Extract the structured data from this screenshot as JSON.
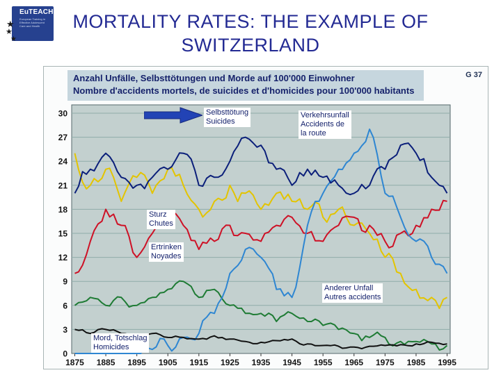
{
  "slide": {
    "title_line1": "MORTALITY RATES: THE EXAMPLE OF",
    "title_line2": "SWITZERLAND"
  },
  "logo": {
    "name": "EuTEACH",
    "subtitle": "European Training in Effective Adolescent Care and Health",
    "star": "★"
  },
  "chart_data": {
    "type": "line",
    "title_de": "Anzahl Unfälle, Selbsttötungen und Morde auf 100'000 Einwohner",
    "title_fr": "Nombre d'accidents mortels, de suicides et d'homicides pour 100'000 habitants",
    "figure_label": "G 37",
    "xlabel": "",
    "ylabel": "",
    "ylim": [
      0,
      30
    ],
    "yticks": [
      0,
      3,
      6,
      9,
      12,
      15,
      18,
      21,
      24,
      27,
      30
    ],
    "xticks": [
      1875,
      1885,
      1895,
      1905,
      1915,
      1925,
      1935,
      1945,
      1955,
      1965,
      1975,
      1985,
      1995
    ],
    "grid": "horizontal",
    "legend_position": "annotated-inline",
    "x": [
      1875,
      1880,
      1885,
      1890,
      1895,
      1900,
      1905,
      1910,
      1915,
      1920,
      1925,
      1930,
      1935,
      1940,
      1945,
      1950,
      1955,
      1960,
      1965,
      1970,
      1975,
      1980,
      1985,
      1990,
      1995
    ],
    "series": [
      {
        "name": "Anderer Unfall / Autres accidents",
        "color": "#E3C400",
        "noise": 1.6,
        "values": [
          25,
          21,
          23,
          19,
          22,
          20,
          23,
          21,
          18,
          19,
          21,
          20,
          18,
          20,
          19,
          18,
          17,
          18,
          16,
          15,
          12,
          10,
          8,
          7,
          7
        ]
      },
      {
        "name": "Sturz / Chutes",
        "color": "#CE1126",
        "noise": 1.4,
        "values": [
          10,
          14,
          18,
          16,
          12,
          15,
          17,
          16,
          13,
          14,
          16,
          15,
          14,
          16,
          17,
          15,
          14,
          16,
          17,
          16,
          14,
          15,
          16,
          18,
          19
        ]
      },
      {
        "name": "Ertrinken / Noyades",
        "color": "#1E7B34",
        "noise": 0.8,
        "values": [
          6,
          7,
          6,
          7,
          6,
          7,
          8,
          9,
          7,
          8,
          6,
          5,
          5,
          4,
          5,
          4,
          3.5,
          3,
          2.5,
          2,
          2,
          1.5,
          1.5,
          1.2,
          1
        ]
      },
      {
        "name": "Verkehrsunfall / Accidents de la route",
        "color": "#2E86D2",
        "noise": 1.2,
        "values": [
          0,
          0,
          0,
          0,
          0,
          0.5,
          1,
          2,
          2.5,
          5,
          10,
          13,
          12,
          8,
          7,
          16,
          20,
          23,
          25,
          28,
          20,
          17,
          14,
          12,
          10
        ]
      },
      {
        "name": "Selbsttötung / Suicides",
        "color": "#0B1F7A",
        "noise": 1.3,
        "values": [
          20,
          23,
          25,
          22,
          21,
          22,
          23,
          25,
          21,
          22,
          24,
          27,
          26,
          23,
          21,
          23,
          22,
          21,
          20,
          21,
          23,
          26,
          25,
          22,
          20
        ]
      },
      {
        "name": "Mord, Totschlag / Homicides",
        "color": "#101010",
        "noise": 0.3,
        "values": [
          3,
          2.5,
          3,
          2.5,
          2,
          2.5,
          2,
          2,
          1.8,
          2.2,
          1.8,
          1.5,
          1.4,
          1.6,
          1.8,
          1.2,
          1,
          0.9,
          0.8,
          0.9,
          1,
          1.1,
          1.2,
          1.4,
          1.2
        ]
      }
    ],
    "annotations": [
      {
        "lines": [
          "Selbsttötung",
          "Suicides"
        ]
      },
      {
        "lines": [
          "Verkehrsunfall",
          "Accidents de",
          "la route"
        ]
      },
      {
        "lines": [
          "Sturz",
          "Chutes"
        ]
      },
      {
        "lines": [
          "Ertrinken",
          "Noyades"
        ]
      },
      {
        "lines": [
          "Anderer Unfall",
          "Autres accidents"
        ]
      },
      {
        "lines": [
          "Mord, Totschlag",
          "Homicides"
        ]
      }
    ],
    "colors": {
      "plot_bg": "#C3D0CF",
      "grid": "#8FACA9",
      "plot_border": "#55686B",
      "arrow": "#2243B5",
      "header_bg": "#C6D6DE",
      "title_text": "#232A93"
    }
  }
}
